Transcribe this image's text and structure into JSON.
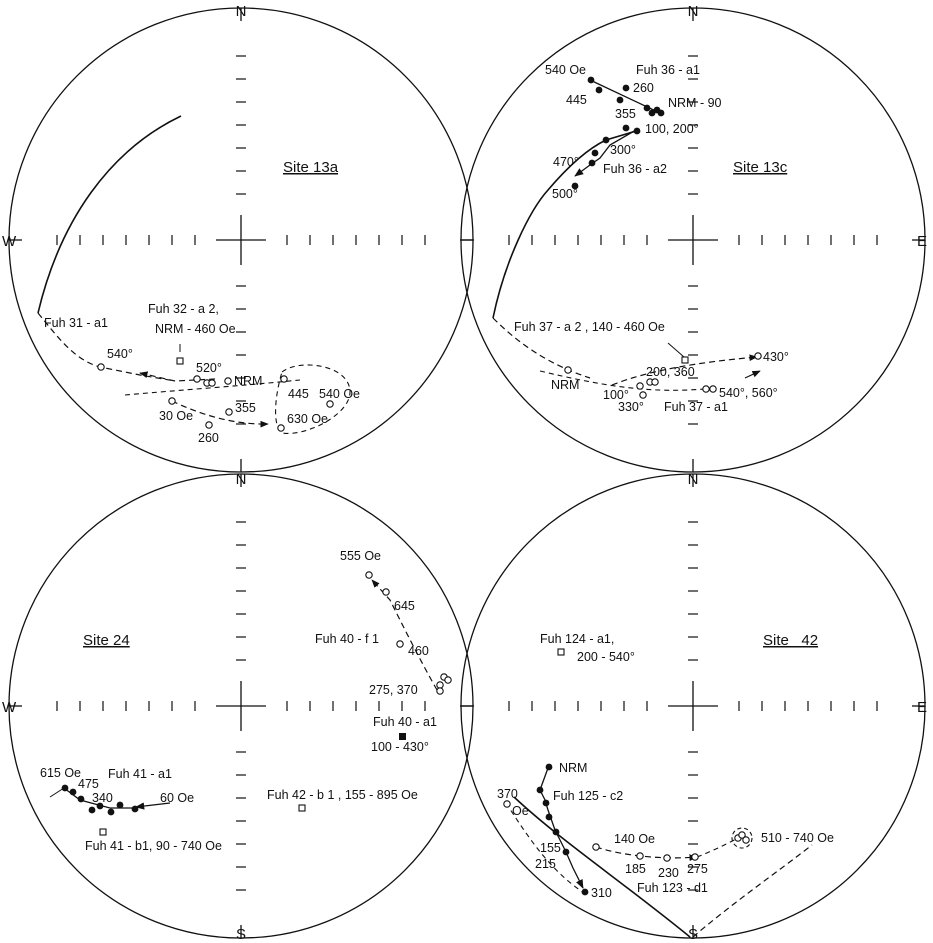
{
  "cardinals": {
    "n": "N",
    "s": "S",
    "e": "E",
    "w": "W"
  },
  "panels": {
    "p13a": {
      "title": "Site 13a",
      "labels": {
        "fuh32": "Fuh 32 - a 2,",
        "nrm460": "NRM - 460 Oe",
        "fuh31": "Fuh 31 - a1",
        "t540deg": "540°",
        "t520deg": "520°",
        "nrm": "NRM",
        "t30oe": "30 Oe",
        "t355": "355",
        "t260": "260",
        "t445": "445",
        "t540oe": "540 Oe",
        "t630oe": "630 Oe"
      }
    },
    "p13c": {
      "title": "Site 13c",
      "labels": {
        "t540oe": "540 Oe",
        "fuh36a1": "Fuh 36 - a1",
        "t260": "260",
        "t445": "445",
        "t355": "355",
        "nrm90": "NRM - 90",
        "t100200": "100, 200°",
        "t300": "300°",
        "t470": "470°",
        "fuh36a2": "Fuh 36 - a2",
        "t500": "500°",
        "fuh37a2": "Fuh 37 - a 2 , 140 - 460 Oe",
        "t430": "430°",
        "nrm": "NRM",
        "t200360": "200, 360",
        "t100": "100°",
        "t330": "330°",
        "fuh37a1": "Fuh 37 - a1",
        "t540560": "540°, 560°"
      }
    },
    "p24": {
      "title": "Site 24",
      "labels": {
        "t555": "555 Oe",
        "t645": "645",
        "fuh40f1": "Fuh 40 - f 1",
        "t460": "460",
        "t275370": "275, 370",
        "fuh40a1": "Fuh 40 - a1",
        "t100430": "100 - 430°",
        "t615": "615 Oe",
        "fuh41a1": "Fuh 41 - a1",
        "t475": "475",
        "t340": "340",
        "t60": "60 Oe",
        "fuh42": "Fuh 42 - b 1 , 155 - 895 Oe",
        "fuh41b1": "Fuh 41 - b1, 90 - 740 Oe"
      }
    },
    "p42": {
      "title": "Site   42",
      "labels": {
        "fuh124": "Fuh 124 - a1,",
        "t200540": "200 - 540°",
        "nrm": "NRM",
        "fuh125": "Fuh 125 - c2",
        "t370": "370",
        "oe": "Oe",
        "t140": "140 Oe",
        "t155": "155",
        "t215": "215",
        "t185": "185",
        "t230": "230",
        "t275": "275",
        "t510740": "510 - 740 Oe",
        "fuh123": "Fuh 123 - d1",
        "t310": "310"
      }
    }
  }
}
